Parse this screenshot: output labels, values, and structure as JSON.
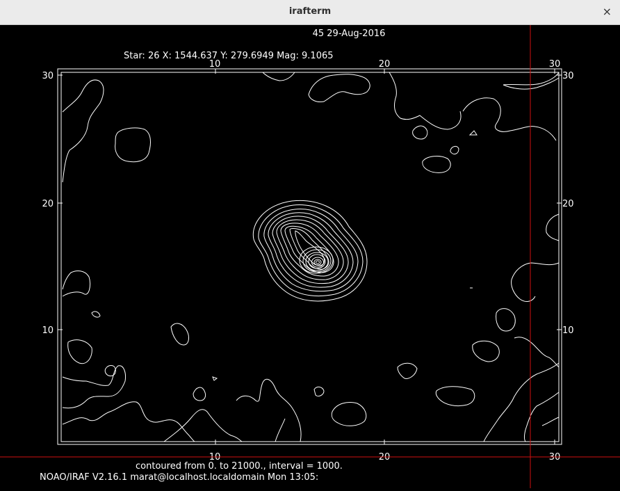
{
  "window": {
    "title": "irafterm",
    "close_glyph": "×"
  },
  "plot": {
    "header_title": "45 29-Aug-2016",
    "star_info": "Star: 26  X: 1544.637  Y: 279.6949  Mag: 9.1065",
    "contour_note": "contoured from 0. to 21000., interval = 1000.",
    "status_line": "NOAO/IRAF V2.16.1 marat@localhost.localdomain Mon 13:05:",
    "x_ticks": [
      "10",
      "20",
      "30"
    ],
    "y_ticks": [
      "30",
      "20",
      "10"
    ]
  },
  "colors": {
    "background": "#000000",
    "lines": "#ffffff",
    "cursor": "#d01010",
    "titlebar": "#ebebeb"
  }
}
